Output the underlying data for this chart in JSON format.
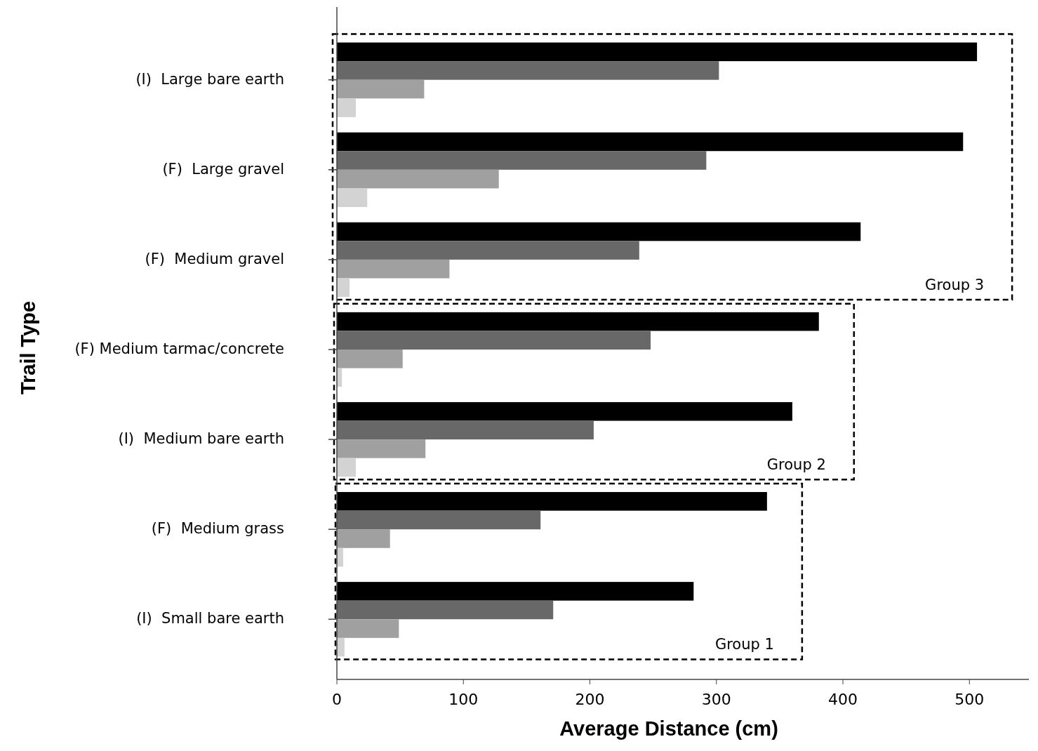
{
  "chart_data": {
    "type": "bar",
    "orientation": "horizontal",
    "xlabel": "Average Distance (cm)",
    "ylabel": "Trail Type",
    "categories": [
      "(I)  Large bare earth",
      "(F)  Large gravel",
      "(F)  Medium gravel",
      "(F) Medium tarmac/concrete",
      "(I)  Medium bare earth",
      "(F)  Medium grass",
      "(I)  Small bare earth"
    ],
    "series": [
      {
        "color": "#000000",
        "values": [
          506,
          495,
          414,
          381,
          360,
          340,
          282
        ]
      },
      {
        "color": "#686868",
        "values": [
          302,
          292,
          239,
          248,
          203,
          161,
          171
        ]
      },
      {
        "color": "#a0a0a0",
        "values": [
          69,
          128,
          89,
          52,
          70,
          42,
          49
        ]
      },
      {
        "color": "#d3d3d3",
        "values": [
          15,
          24,
          10,
          4,
          15,
          5,
          6
        ]
      }
    ],
    "xlim": [
      0,
      547
    ],
    "xticks": [
      0,
      100,
      200,
      300,
      400,
      500
    ],
    "annotations": [
      "Group 3",
      "Group 2",
      "Group 1"
    ],
    "grid": false
  }
}
